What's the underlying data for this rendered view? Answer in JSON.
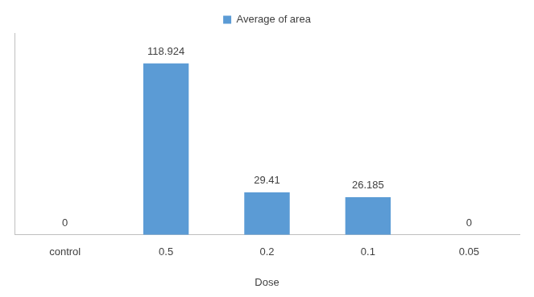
{
  "chart_data": {
    "type": "bar",
    "x_label": "Dose",
    "categories": [
      "control",
      "0.5",
      "0.2",
      "0.1",
      "0.05"
    ],
    "series": [
      {
        "name": "Average of area",
        "color": "#5b9bd5",
        "values": [
          0,
          118.924,
          29.41,
          26.185,
          0
        ]
      }
    ],
    "ylim": [
      0,
      140
    ],
    "grid": false,
    "legend": "top",
    "data_labels": true,
    "tick_labels": "x"
  }
}
